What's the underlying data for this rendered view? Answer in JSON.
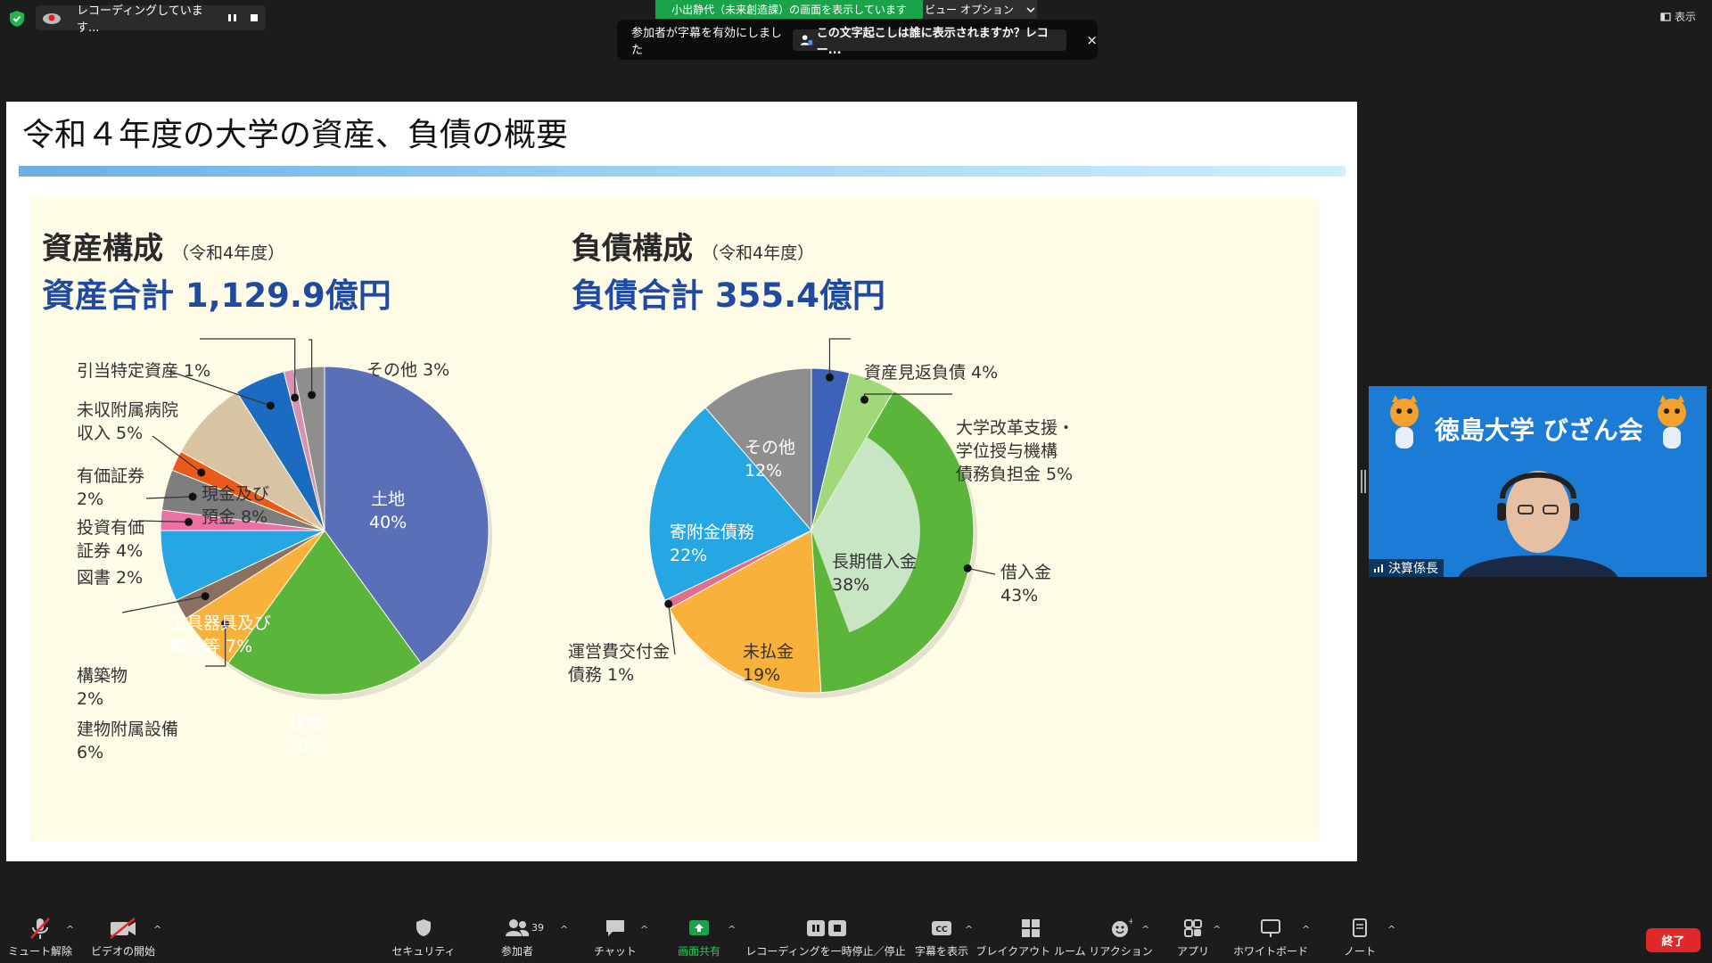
{
  "top": {
    "recording_text": "レコーディングしています...",
    "share_banner": "小出静代（未来創造課）の画面を表示しています",
    "view_options": "ビュー オプション",
    "cc_notice": "参加者が字幕を有効にしました",
    "cc_link": "この文字起こしは誰に表示されますか？レコー...",
    "close_symbol": "×",
    "display_label": "表示"
  },
  "slide": {
    "title": "令和４年度の大学の資産、負債の概要",
    "assets": {
      "heading": "資産構成",
      "year": "（令和4年度）",
      "total": "資産合計 1,129.9億円"
    },
    "liabilities": {
      "heading": "負債構成",
      "year": "（令和4年度）",
      "total": "負債合計 355.4億円"
    }
  },
  "chart_data": [
    {
      "type": "pie",
      "title": "資産構成",
      "categories": [
        "土地",
        "建物",
        "建物附属設備",
        "構築物",
        "工具器具及び備品等",
        "図書",
        "投資有価証券",
        "有価証券",
        "現金及び預金",
        "未収附属病院収入",
        "引当特定資産",
        "その他"
      ],
      "values": [
        40,
        20,
        6,
        2,
        7,
        2,
        4,
        2,
        8,
        5,
        1,
        3
      ],
      "unit": "%",
      "labels": {
        "land": "土地\n40%",
        "building": "建物\n20%",
        "facilities": "建物附属設備\n6%",
        "structures": "構築物\n2%",
        "equipment": "工具器具及び\n備品等 7%",
        "books": "図書 2%",
        "investments": "投資有価\n証券 4%",
        "securities": "有価証券\n2%",
        "cash": "現金及び\n預金 8%",
        "receivable": "未収附属病院\n収入 5%",
        "reserve": "引当特定資産 1%",
        "other": "その他 3%"
      },
      "colors": [
        "#5a6fb8",
        "#5bb53a",
        "#f8b13a",
        "#8a7060",
        "#26a6e2",
        "#ec6fa5",
        "#7e7e7e",
        "#ea5a1a",
        "#d8c3a2",
        "#1b6cc0",
        "#d891b4",
        "#8e8e8e"
      ]
    },
    {
      "type": "pie",
      "title": "負債構成",
      "categories": [
        "資産見返負債",
        "大学改革支援・学位授与機構債務負担金",
        "借入金",
        "長期借入金",
        "未払金",
        "運営費交付金債務",
        "寄附金債務",
        "その他"
      ],
      "values": [
        4,
        5,
        43,
        38,
        19,
        1,
        22,
        12
      ],
      "unit": "%",
      "note": "長期借入金 38% は借入金 43% の内数",
      "labels": {
        "mirror": "資産見返負債 4%",
        "niad": "大学改革支援・\n学位授与機構\n債務負担金 5%",
        "borrowings": "借入金\n43%",
        "longterm": "長期借入金\n38%",
        "payable": "未払金\n19%",
        "opgrant": "運営費交付金\n債務 1%",
        "donation": "寄附金債務\n22%",
        "other": "その他\n12%"
      },
      "colors": [
        "#3d62b8",
        "#a1d87a",
        "#5bb53a",
        "#c8e6c3",
        "#f8b13a",
        "#e26d8c",
        "#26a6e2",
        "#8e8e8e"
      ]
    }
  ],
  "video": {
    "title": "徳島大学 びざん会",
    "name": "決算係長"
  },
  "toolbar": {
    "mute": "ミュート解除",
    "video": "ビデオの開始",
    "security": "セキュリティ",
    "participants": "参加者",
    "participants_count": "39",
    "chat": "チャット",
    "share": "画面共有",
    "recording": "レコーディングを一時停止／停止",
    "captions": "字幕を表示",
    "breakout": "ブレイクアウト ルーム",
    "reactions": "リアクション",
    "apps": "アプリ",
    "whiteboard": "ホワイトボード",
    "notes": "ノート",
    "end": "終了",
    "cc_icon": "CC"
  }
}
